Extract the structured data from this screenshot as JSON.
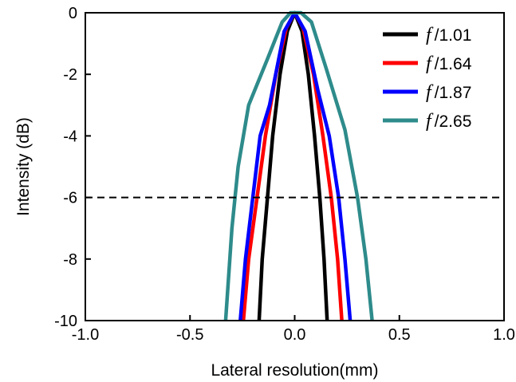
{
  "chart_data": {
    "type": "line",
    "xlabel": "Lateral resolution(mm)",
    "ylabel": "Intensity (dB)",
    "xlim": [
      -1.0,
      1.0
    ],
    "ylim": [
      -10,
      0
    ],
    "xticks": [
      "-1.0",
      "-0.5",
      "0.0",
      "0.5",
      "1.0"
    ],
    "yticks": [
      "0",
      "-2",
      "-4",
      "-6",
      "-8",
      "-10"
    ],
    "grid": false,
    "legend_position": "top-right",
    "reference_line": {
      "y": -6,
      "style": "dashed"
    },
    "series": [
      {
        "name_prefix": "f",
        "name_suffix": "/1.01",
        "color": "#000000",
        "points": [
          [
            -0.17,
            -10
          ],
          [
            -0.155,
            -8
          ],
          [
            -0.13,
            -6
          ],
          [
            -0.105,
            -4
          ],
          [
            -0.07,
            -2
          ],
          [
            -0.035,
            -0.6
          ],
          [
            0.0,
            0.0
          ],
          [
            0.035,
            -0.6
          ],
          [
            0.065,
            -2
          ],
          [
            0.095,
            -4
          ],
          [
            0.12,
            -6
          ],
          [
            0.14,
            -8
          ],
          [
            0.155,
            -10
          ]
        ]
      },
      {
        "name_prefix": "f",
        "name_suffix": "/1.64",
        "color": "#ff0000",
        "points": [
          [
            -0.245,
            -10
          ],
          [
            -0.22,
            -8
          ],
          [
            -0.18,
            -6
          ],
          [
            -0.14,
            -4
          ],
          [
            -0.09,
            -2
          ],
          [
            -0.04,
            -0.5
          ],
          [
            0.0,
            0.0
          ],
          [
            0.04,
            -0.5
          ],
          [
            0.09,
            -2
          ],
          [
            0.135,
            -4
          ],
          [
            0.175,
            -6
          ],
          [
            0.205,
            -8
          ],
          [
            0.225,
            -10
          ]
        ]
      },
      {
        "name_prefix": "f",
        "name_suffix": "/1.87",
        "color": "#0000ff",
        "points": [
          [
            -0.26,
            -10
          ],
          [
            -0.235,
            -8
          ],
          [
            -0.2,
            -6
          ],
          [
            -0.165,
            -4
          ],
          [
            -0.12,
            -3
          ],
          [
            -0.05,
            -0.6
          ],
          [
            0.0,
            0.0
          ],
          [
            0.05,
            -0.6
          ],
          [
            0.11,
            -2.5
          ],
          [
            0.165,
            -4
          ],
          [
            0.21,
            -6
          ],
          [
            0.24,
            -8
          ],
          [
            0.265,
            -10
          ]
        ]
      },
      {
        "name_prefix": "f",
        "name_suffix": "/2.65",
        "color": "#2e8b8b",
        "points": [
          [
            -0.33,
            -10
          ],
          [
            -0.3,
            -7
          ],
          [
            -0.27,
            -5
          ],
          [
            -0.22,
            -3
          ],
          [
            -0.13,
            -1.5
          ],
          [
            -0.06,
            -0.3
          ],
          [
            -0.02,
            0.0
          ],
          [
            0.03,
            0.0
          ],
          [
            0.08,
            -0.3
          ],
          [
            0.15,
            -1.8
          ],
          [
            0.24,
            -3.8
          ],
          [
            0.3,
            -6
          ],
          [
            0.34,
            -8
          ],
          [
            0.37,
            -10
          ]
        ]
      }
    ]
  }
}
